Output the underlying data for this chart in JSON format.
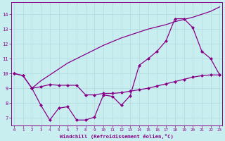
{
  "background_color": "#c8eef0",
  "line_color": "#880088",
  "grid_color": "#b8e0e4",
  "xlabel": "Windchill (Refroidissement éolien,°C)",
  "x_ticks": [
    0,
    1,
    2,
    3,
    4,
    5,
    6,
    7,
    8,
    9,
    10,
    11,
    12,
    13,
    14,
    15,
    16,
    17,
    18,
    19,
    20,
    21,
    22,
    23
  ],
  "y_ticks": [
    7,
    8,
    9,
    10,
    11,
    12,
    13,
    14
  ],
  "xlim": [
    -0.3,
    23.3
  ],
  "ylim": [
    6.5,
    14.8
  ],
  "series1_x": [
    0,
    1,
    2,
    3,
    4,
    5,
    6,
    7,
    8,
    9,
    10,
    11,
    12,
    13,
    14,
    15,
    16,
    17,
    18,
    19,
    20,
    21,
    22,
    23
  ],
  "series1_y": [
    10.0,
    9.85,
    9.0,
    7.85,
    6.85,
    7.65,
    7.75,
    6.85,
    6.85,
    7.05,
    8.55,
    8.45,
    7.85,
    8.5,
    10.55,
    11.0,
    11.5,
    12.2,
    13.7,
    13.7,
    13.1,
    11.5,
    11.0,
    9.9
  ],
  "series2_x": [
    0,
    1,
    2,
    3,
    4,
    5,
    6,
    7,
    8,
    9,
    10,
    11,
    12,
    13,
    14,
    15,
    16,
    17,
    18,
    19,
    20,
    21,
    22,
    23
  ],
  "series2_y": [
    10.0,
    9.85,
    9.0,
    9.1,
    9.25,
    9.2,
    9.2,
    9.2,
    8.55,
    8.55,
    8.65,
    8.65,
    8.7,
    8.8,
    8.9,
    9.0,
    9.15,
    9.3,
    9.45,
    9.6,
    9.75,
    9.85,
    9.9,
    9.9
  ],
  "series3_x": [
    2,
    3,
    4,
    5,
    6,
    7,
    8,
    9,
    10,
    11,
    12,
    13,
    14,
    15,
    16,
    17,
    18,
    19,
    20,
    21,
    22,
    23
  ],
  "series3_y": [
    9.0,
    9.5,
    9.9,
    10.3,
    10.7,
    11.0,
    11.3,
    11.6,
    11.9,
    12.15,
    12.4,
    12.6,
    12.8,
    13.0,
    13.15,
    13.3,
    13.5,
    13.65,
    13.8,
    14.0,
    14.2,
    14.5
  ],
  "marker_size": 2.5,
  "linewidth": 0.9
}
